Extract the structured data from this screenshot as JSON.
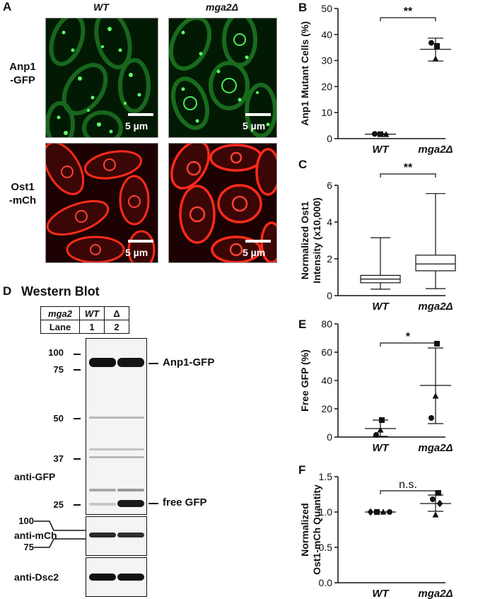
{
  "panels": {
    "A": {
      "letter": "A",
      "col_headers": [
        "WT",
        "mga2Δ"
      ],
      "row_labels": [
        [
          "Anp1",
          "-GFP"
        ],
        [
          "Ost1",
          "-mCh"
        ]
      ],
      "scale_bar": "5 µm"
    },
    "D": {
      "letter": "D",
      "title": "Western Blot",
      "table": {
        "row1": [
          "mga2",
          "WT",
          "Δ"
        ],
        "row2": [
          "Lane",
          "1",
          "2"
        ]
      },
      "mw_markers": [
        "100",
        "75",
        "50",
        "37",
        "25"
      ],
      "mw_markers_mch": [
        "100",
        "75"
      ],
      "antibodies": [
        "anti-GFP",
        "anti-mCh",
        "anti-Dsc2"
      ],
      "band_labels": [
        "Anp1-GFP",
        "free GFP"
      ]
    }
  },
  "colors": {
    "green": "#3ee84a",
    "red": "#ff2a1a",
    "axis": "#111111"
  },
  "chart_data": [
    {
      "id": "B",
      "type": "scatter",
      "letter": "B",
      "ylabel": "Anp1 Mutant Cells (%)",
      "categories": [
        "WT",
        "mga2Δ"
      ],
      "ylim": [
        0,
        50
      ],
      "yticks": [
        0,
        10,
        20,
        30,
        40,
        50
      ],
      "points": [
        {
          "cat": 0,
          "marker": "circle",
          "y": 1.8
        },
        {
          "cat": 0,
          "marker": "square",
          "y": 1.7
        },
        {
          "cat": 0,
          "marker": "triangle",
          "y": 1.6
        },
        {
          "cat": 1,
          "marker": "circle",
          "y": 36.8
        },
        {
          "cat": 1,
          "marker": "square",
          "y": 35.6
        },
        {
          "cat": 1,
          "marker": "triangle",
          "y": 30.6
        }
      ],
      "summary": [
        {
          "cat": 0,
          "mean": 1.7,
          "low": 1.5,
          "high": 1.9
        },
        {
          "cat": 1,
          "mean": 34.3,
          "low": 29.8,
          "high": 38.6
        }
      ],
      "significance": "**"
    },
    {
      "id": "C",
      "type": "box",
      "letter": "C",
      "ylabel": [
        "Normalized Ost1",
        "Intensity (x10,000)"
      ],
      "categories": [
        "WT",
        "mga2Δ"
      ],
      "ylim": [
        0,
        6
      ],
      "yticks": [
        0,
        2,
        4,
        6
      ],
      "boxes": [
        {
          "cat": 0,
          "min": 0.35,
          "q1": 0.7,
          "median": 0.9,
          "q3": 1.1,
          "max": 3.15
        },
        {
          "cat": 1,
          "min": 0.38,
          "q1": 1.35,
          "median": 1.72,
          "q3": 2.2,
          "max": 5.55
        }
      ],
      "significance": "**"
    },
    {
      "id": "E",
      "type": "scatter",
      "letter": "E",
      "ylabel": "Free GFP (%)",
      "categories": [
        "WT",
        "mga2Δ"
      ],
      "ylim": [
        0,
        80
      ],
      "yticks": [
        0,
        20,
        40,
        60,
        80
      ],
      "points": [
        {
          "cat": 0,
          "marker": "square",
          "y": 12
        },
        {
          "cat": 0,
          "marker": "triangle",
          "y": 5
        },
        {
          "cat": 0,
          "marker": "circle",
          "y": 1.5
        },
        {
          "cat": 1,
          "marker": "square",
          "y": 66
        },
        {
          "cat": 1,
          "marker": "triangle",
          "y": 29
        },
        {
          "cat": 1,
          "marker": "circle",
          "y": 13.5
        }
      ],
      "summary": [
        {
          "cat": 0,
          "mean": 6,
          "low": 0.5,
          "high": 12
        },
        {
          "cat": 1,
          "mean": 36.5,
          "low": 9.5,
          "high": 63
        }
      ],
      "significance": "*"
    },
    {
      "id": "F",
      "type": "scatter",
      "letter": "F",
      "ylabel": [
        "Normalized",
        "Ost1-mCh Quantity"
      ],
      "categories": [
        "WT",
        "mga2Δ"
      ],
      "ylim": [
        0,
        1.5
      ],
      "yticks": [
        "0.0",
        "0.5",
        "1.0",
        "1.5"
      ],
      "points": [
        {
          "cat": 0,
          "marker": "diamond",
          "y": 1.0,
          "dx": -14
        },
        {
          "cat": 0,
          "marker": "square",
          "y": 1.0,
          "dx": -5
        },
        {
          "cat": 0,
          "marker": "triangle",
          "y": 1.0,
          "dx": 4
        },
        {
          "cat": 0,
          "marker": "circle",
          "y": 1.0,
          "dx": 13
        },
        {
          "cat": 1,
          "marker": "square",
          "y": 1.27,
          "dx": 4
        },
        {
          "cat": 1,
          "marker": "circle",
          "y": 1.18,
          "dx": -4
        },
        {
          "cat": 1,
          "marker": "diamond",
          "y": 1.12,
          "dx": 6
        },
        {
          "cat": 1,
          "marker": "triangle",
          "y": 0.96,
          "dx": 0
        }
      ],
      "summary": [
        {
          "cat": 0,
          "mean": 1.0,
          "low": 1.0,
          "high": 1.0
        },
        {
          "cat": 1,
          "mean": 1.12,
          "low": 1.01,
          "high": 1.24
        }
      ],
      "significance": "n.s."
    }
  ]
}
